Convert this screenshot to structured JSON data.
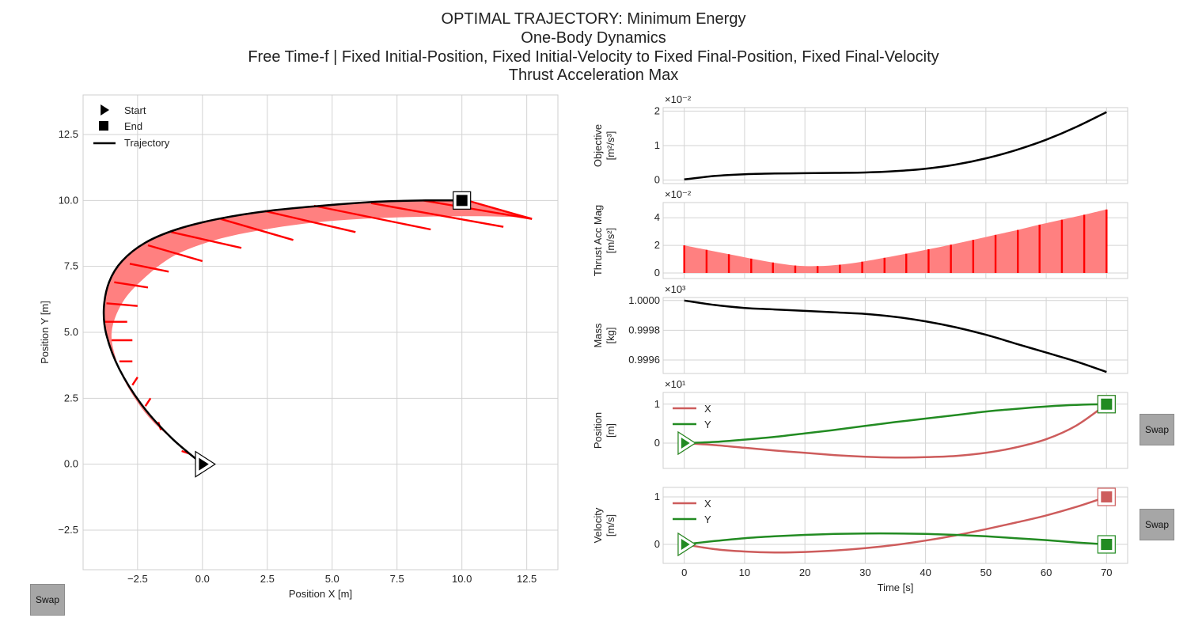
{
  "figure": {
    "title_lines": [
      "OPTIMAL TRAJECTORY: Minimum Energy",
      "One-Body Dynamics",
      "Free Time-f | Fixed Initial-Position, Fixed Initial-Velocity to Fixed Final-Position, Fixed Final-Velocity",
      "Thrust Acceleration Max"
    ]
  },
  "buttons": {
    "swap_label": "Swap"
  },
  "colors": {
    "thrust": "#ff0000",
    "thrust_fill": "#ff8080",
    "trajectory": "#000000",
    "x_series": "#cd5c5c",
    "y_series": "#228b22",
    "grid": "#d3d3d3"
  },
  "chart_data": [
    {
      "id": "trajectory",
      "type": "line",
      "xlabel": "Position X [m]",
      "ylabel": "Position Y [m]",
      "xlim": [
        -4.6,
        13.7
      ],
      "ylim": [
        -4.0,
        14.0
      ],
      "xticks": [
        -2.5,
        0.0,
        2.5,
        5.0,
        7.5,
        10.0,
        12.5
      ],
      "xtick_labels": [
        "−2.5",
        "0.0",
        "2.5",
        "5.0",
        "7.5",
        "10.0",
        "12.5"
      ],
      "yticks": [
        -2.5,
        0.0,
        2.5,
        5.0,
        7.5,
        10.0,
        12.5
      ],
      "ytick_labels": [
        "−2.5",
        "0.0",
        "2.5",
        "5.0",
        "7.5",
        "10.0",
        "12.5"
      ],
      "legend": {
        "placement": "top-left",
        "entries": [
          "Start",
          "End",
          "Trajectory"
        ]
      },
      "path": {
        "x": [
          0.0,
          -1.2,
          -2.3,
          -3.2,
          -3.7,
          -3.8,
          -3.6,
          -3.1,
          -2.2,
          -1.0,
          0.6,
          2.5,
          4.6,
          6.7,
          8.6,
          10.0
        ],
        "y": [
          0.0,
          1.0,
          2.2,
          3.6,
          4.9,
          5.9,
          6.9,
          7.7,
          8.4,
          8.9,
          9.3,
          9.6,
          9.8,
          9.95,
          10.0,
          10.0
        ]
      },
      "thrust_tip": {
        "x": [
          -0.6,
          -1.9,
          -2.8,
          -3.3,
          -3.5,
          -3.1,
          -2.3,
          -1.1,
          0.5,
          2.4,
          4.7,
          7.3,
          10.4,
          12.7
        ],
        "y": [
          0.5,
          1.6,
          2.8,
          3.9,
          5.0,
          6.1,
          7.0,
          7.9,
          8.5,
          8.9,
          9.2,
          9.35,
          9.4,
          9.35
        ]
      },
      "thrust_vectors": [
        {
          "x": -0.8,
          "y": 0.5,
          "dx": 0.3,
          "dy": -0.1
        },
        {
          "x": -1.6,
          "y": 1.3,
          "dx": -0.1,
          "dy": 0.3
        },
        {
          "x": -2.2,
          "y": 2.2,
          "dx": 0.2,
          "dy": 0.3
        },
        {
          "x": -2.7,
          "y": 3.0,
          "dx": 0.2,
          "dy": 0.3
        },
        {
          "x": -3.2,
          "y": 3.9,
          "dx": 0.5,
          "dy": 0.0
        },
        {
          "x": -3.5,
          "y": 4.7,
          "dx": 0.8,
          "dy": 0.0
        },
        {
          "x": -3.8,
          "y": 5.4,
          "dx": 0.9,
          "dy": 0.0
        },
        {
          "x": -3.7,
          "y": 6.1,
          "dx": 1.2,
          "dy": -0.1
        },
        {
          "x": -3.4,
          "y": 6.9,
          "dx": 1.3,
          "dy": -0.2
        },
        {
          "x": -2.8,
          "y": 7.6,
          "dx": 1.5,
          "dy": -0.3
        },
        {
          "x": -2.1,
          "y": 8.3,
          "dx": 2.1,
          "dy": -0.6
        },
        {
          "x": -1.2,
          "y": 8.8,
          "dx": 2.7,
          "dy": -0.6
        },
        {
          "x": 0.7,
          "y": 9.3,
          "dx": 2.8,
          "dy": -0.8
        },
        {
          "x": 2.4,
          "y": 9.6,
          "dx": 3.5,
          "dy": -0.8
        },
        {
          "x": 4.3,
          "y": 9.8,
          "dx": 4.5,
          "dy": -0.9
        },
        {
          "x": 6.5,
          "y": 9.9,
          "dx": 5.1,
          "dy": -0.9
        },
        {
          "x": 8.5,
          "y": 10.0,
          "dx": 4.2,
          "dy": -0.7
        },
        {
          "x": 10.2,
          "y": 10.0,
          "dx": 2.5,
          "dy": -0.7
        }
      ],
      "start": {
        "x": 0.0,
        "y": 0.0
      },
      "end": {
        "x": 10.0,
        "y": 10.0
      }
    },
    {
      "id": "objective",
      "type": "line",
      "ylabel_lines": [
        "Objective",
        "[m²/s³]"
      ],
      "exponent": "×10⁻²",
      "xlim": [
        -3.5,
        73.5
      ],
      "ylim": [
        -0.1,
        2.1
      ],
      "yticks": [
        0,
        1,
        2
      ],
      "ytick_labels": [
        "0",
        "1",
        "2"
      ],
      "series": [
        {
          "x": [
            0,
            5,
            10,
            15,
            20,
            25,
            30,
            35,
            40,
            45,
            50,
            55,
            60,
            65,
            70
          ],
          "y": [
            0.02,
            0.12,
            0.17,
            0.19,
            0.2,
            0.21,
            0.22,
            0.26,
            0.33,
            0.45,
            0.63,
            0.87,
            1.17,
            1.54,
            1.97
          ]
        }
      ]
    },
    {
      "id": "thrust_acc_mag",
      "type": "area",
      "ylabel_lines": [
        "Thrust Acc Mag",
        "[m/s²]"
      ],
      "exponent": "×10⁻²",
      "xlim": [
        -3.5,
        73.5
      ],
      "ylim": [
        -0.4,
        5.1
      ],
      "yticks": [
        0,
        2,
        4
      ],
      "ytick_labels": [
        "0",
        "2",
        "4"
      ],
      "series": [
        {
          "x": [
            0,
            3.7,
            7.4,
            11.1,
            14.7,
            18.4,
            22.1,
            25.8,
            29.5,
            33.2,
            36.8,
            40.5,
            44.2,
            47.9,
            51.6,
            55.3,
            58.9,
            62.6,
            66.3,
            70
          ],
          "y": [
            2.0,
            1.68,
            1.36,
            1.04,
            0.76,
            0.54,
            0.5,
            0.6,
            0.82,
            1.1,
            1.4,
            1.72,
            2.05,
            2.4,
            2.76,
            3.12,
            3.5,
            3.86,
            4.22,
            4.6
          ]
        }
      ]
    },
    {
      "id": "mass",
      "type": "line",
      "ylabel_lines": [
        "Mass",
        "[kg]"
      ],
      "exponent": "×10³",
      "xlim": [
        -3.5,
        73.5
      ],
      "ylim": [
        0.99951,
        1.00002
      ],
      "yticks": [
        0.9996,
        0.9998,
        1.0
      ],
      "ytick_labels": [
        "0.9996",
        "0.9998",
        "1.0000"
      ],
      "series": [
        {
          "x": [
            0,
            5,
            10,
            15,
            20,
            25,
            30,
            35,
            40,
            45,
            50,
            55,
            60,
            65,
            70
          ],
          "y": [
            1.0,
            0.99997,
            0.99995,
            0.99994,
            0.99993,
            0.99992,
            0.99991,
            0.99989,
            0.99986,
            0.99982,
            0.99977,
            0.99971,
            0.99965,
            0.99959,
            0.99952
          ]
        }
      ]
    },
    {
      "id": "position",
      "type": "line",
      "ylabel_lines": [
        "Position",
        "[m]"
      ],
      "exponent": "×10¹",
      "xlim": [
        -3.5,
        73.5
      ],
      "ylim": [
        -0.65,
        1.3
      ],
      "yticks": [
        0,
        1
      ],
      "ytick_labels": [
        "0",
        "1"
      ],
      "legend": {
        "placement": "top-left"
      },
      "series": [
        {
          "name": "X",
          "color": "#cd5c5c",
          "x": [
            0,
            5,
            10,
            15,
            20,
            25,
            30,
            35,
            40,
            45,
            50,
            55,
            60,
            65,
            70
          ],
          "y": [
            0,
            -0.05,
            -0.12,
            -0.19,
            -0.25,
            -0.31,
            -0.35,
            -0.37,
            -0.36,
            -0.33,
            -0.25,
            -0.11,
            0.1,
            0.45,
            1.0
          ]
        },
        {
          "name": "Y",
          "color": "#228b22",
          "x": [
            0,
            5,
            10,
            15,
            20,
            25,
            30,
            35,
            40,
            45,
            50,
            55,
            60,
            65,
            70
          ],
          "y": [
            0,
            0.03,
            0.09,
            0.16,
            0.25,
            0.34,
            0.44,
            0.54,
            0.63,
            0.72,
            0.81,
            0.88,
            0.94,
            0.98,
            1.0
          ]
        }
      ]
    },
    {
      "id": "velocity",
      "type": "line",
      "ylabel_lines": [
        "Velocity",
        "[m/s]"
      ],
      "xlabel": "Time [s]",
      "xticks": [
        0,
        10,
        20,
        30,
        40,
        50,
        60,
        70
      ],
      "xtick_labels": [
        "0",
        "10",
        "20",
        "30",
        "40",
        "50",
        "60",
        "70"
      ],
      "xlim": [
        -3.5,
        73.5
      ],
      "ylim": [
        -0.4,
        1.2
      ],
      "yticks": [
        0,
        1
      ],
      "ytick_labels": [
        "0",
        "1"
      ],
      "legend": {
        "placement": "top-left"
      },
      "series": [
        {
          "name": "X",
          "color": "#cd5c5c",
          "x": [
            0,
            5,
            10,
            15,
            20,
            25,
            30,
            35,
            40,
            45,
            50,
            55,
            60,
            65,
            70
          ],
          "y": [
            0,
            -0.1,
            -0.15,
            -0.17,
            -0.16,
            -0.13,
            -0.08,
            -0.01,
            0.08,
            0.19,
            0.32,
            0.46,
            0.61,
            0.79,
            1.0
          ]
        },
        {
          "name": "Y",
          "color": "#228b22",
          "x": [
            0,
            5,
            10,
            15,
            20,
            25,
            30,
            35,
            40,
            45,
            50,
            55,
            60,
            65,
            70
          ],
          "y": [
            0,
            0.07,
            0.13,
            0.17,
            0.2,
            0.22,
            0.23,
            0.23,
            0.22,
            0.2,
            0.17,
            0.13,
            0.09,
            0.04,
            0.0
          ]
        }
      ]
    }
  ]
}
